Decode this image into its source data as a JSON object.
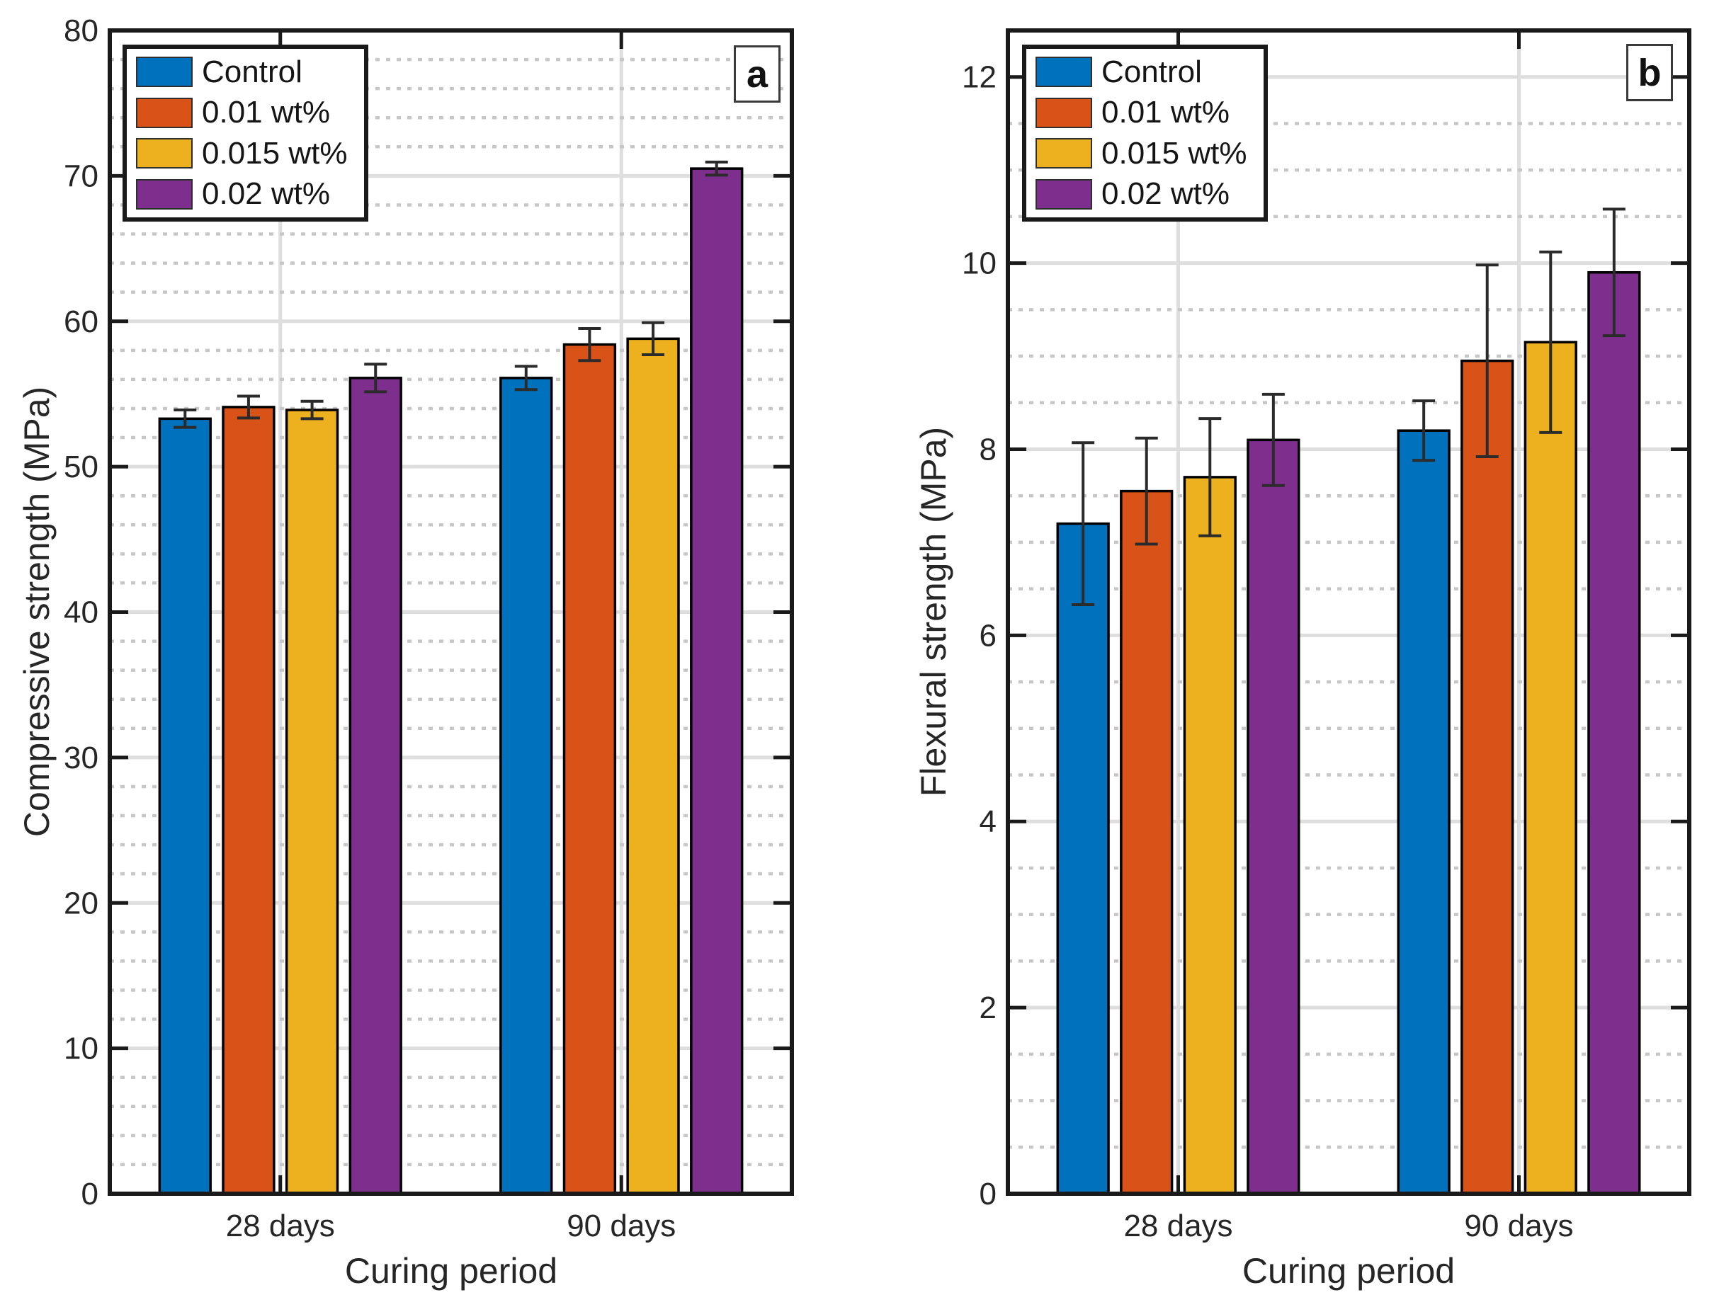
{
  "figure": {
    "background": "#ffffff"
  },
  "chart_data": [
    {
      "type": "bar",
      "panel_label": "a",
      "ylabel": "Compressive strength (MPa)",
      "xlabel": "Curing period",
      "categories": [
        "28 days",
        "90 days"
      ],
      "ylim": [
        0,
        80
      ],
      "yticks": [
        0,
        10,
        20,
        30,
        40,
        50,
        60,
        70,
        80
      ],
      "minor_grid_step": 2,
      "grid": "on",
      "legend_position": "top-left",
      "legend_entries": [
        "Control",
        "0.01 wt%",
        "0.015 wt%",
        "0.02 wt%"
      ],
      "series": [
        {
          "name": "Control",
          "color": "#0072BD",
          "values": [
            53.3,
            56.1
          ],
          "errors": [
            0.6,
            0.8
          ]
        },
        {
          "name": "0.01 wt%",
          "color": "#D95319",
          "values": [
            54.1,
            58.4
          ],
          "errors": [
            0.75,
            1.1
          ]
        },
        {
          "name": "0.015 wt%",
          "color": "#EDB120",
          "values": [
            53.9,
            58.8
          ],
          "errors": [
            0.6,
            1.1
          ]
        },
        {
          "name": "0.02 wt%",
          "color": "#7E2F8E",
          "values": [
            56.1,
            70.5
          ],
          "errors": [
            0.95,
            0.45
          ]
        }
      ]
    },
    {
      "type": "bar",
      "panel_label": "b",
      "ylabel": "Flexural strength (MPa)",
      "xlabel": "Curing period",
      "categories": [
        "28 days",
        "90 days"
      ],
      "ylim": [
        0,
        12.5
      ],
      "yticks": [
        0,
        2,
        4,
        6,
        8,
        10,
        12
      ],
      "minor_grid_step": 0.5,
      "grid": "on",
      "legend_position": "top-left",
      "legend_entries": [
        "Control",
        "0.01 wt%",
        "0.015 wt%",
        "0.02 wt%"
      ],
      "series": [
        {
          "name": "Control",
          "color": "#0072BD",
          "values": [
            7.2,
            8.2
          ],
          "errors": [
            0.87,
            0.32
          ]
        },
        {
          "name": "0.01 wt%",
          "color": "#D95319",
          "values": [
            7.55,
            8.95
          ],
          "errors": [
            0.57,
            1.03
          ]
        },
        {
          "name": "0.015 wt%",
          "color": "#EDB120",
          "values": [
            7.7,
            9.15
          ],
          "errors": [
            0.63,
            0.97
          ]
        },
        {
          "name": "0.02 wt%",
          "color": "#7E2F8E",
          "values": [
            8.1,
            9.9
          ],
          "errors": [
            0.49,
            0.68
          ]
        }
      ]
    }
  ]
}
